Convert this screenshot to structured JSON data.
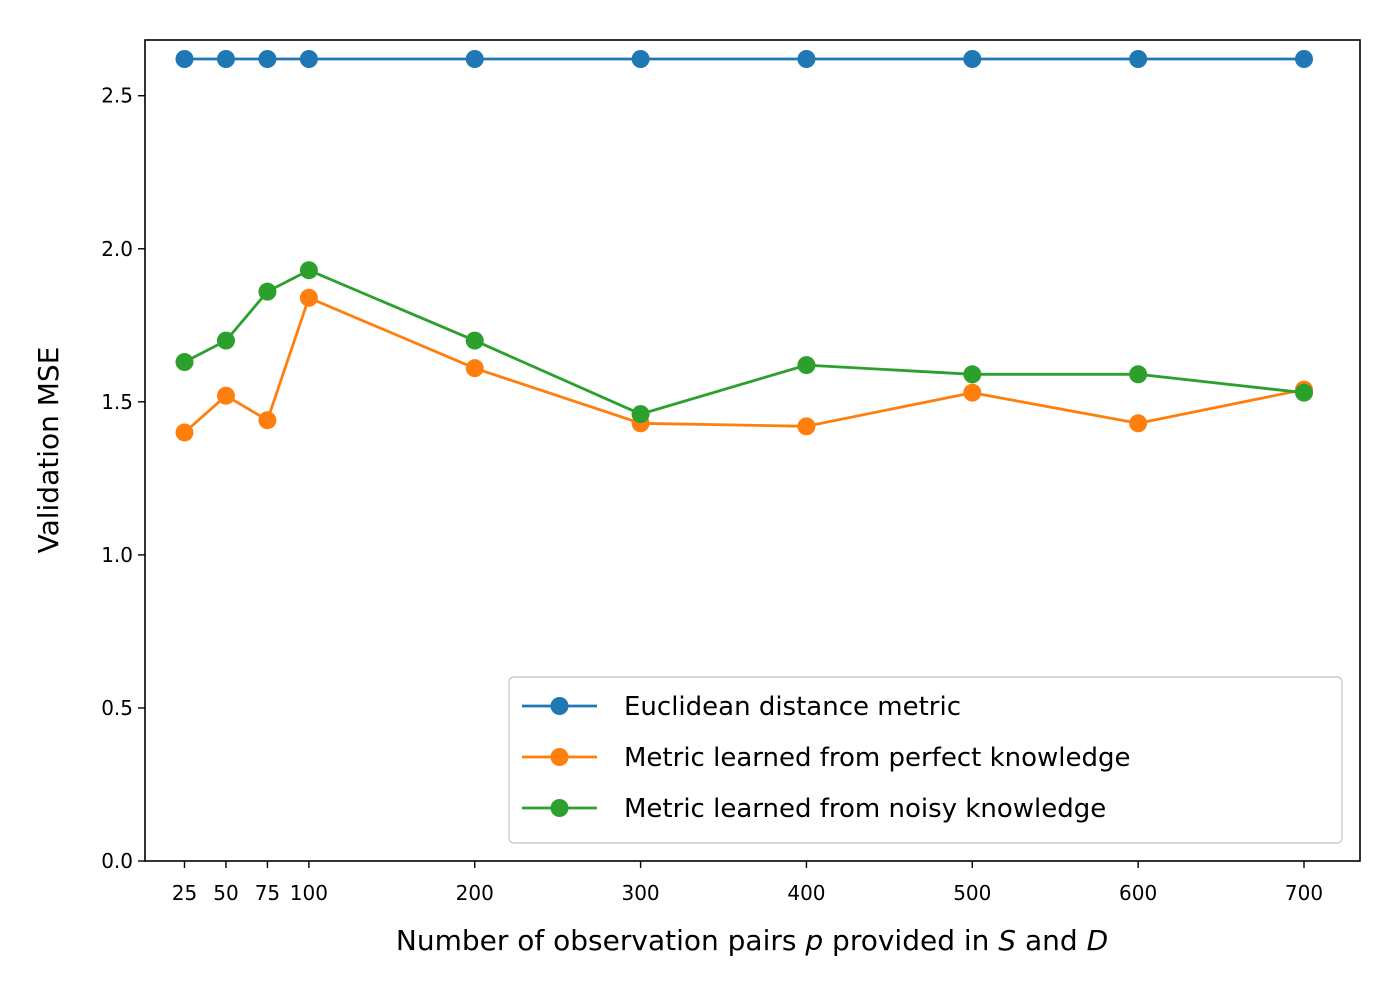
{
  "chart_data": {
    "type": "line",
    "xlabel": "Number of observation pairs p provided in S and D",
    "xlabel_parts": [
      {
        "text": "Number of observation pairs ",
        "italic": false
      },
      {
        "text": "p",
        "italic": true
      },
      {
        "text": " provided in ",
        "italic": false
      },
      {
        "text": "S",
        "italic": true
      },
      {
        "text": " and ",
        "italic": false
      },
      {
        "text": "D",
        "italic": true
      }
    ],
    "ylabel": "Validation MSE",
    "x": [
      25,
      50,
      75,
      100,
      200,
      300,
      400,
      500,
      600,
      700
    ],
    "x_tick_labels": [
      "25",
      "50",
      "75",
      "100",
      "200",
      "300",
      "400",
      "500",
      "600",
      "700"
    ],
    "xlim": [
      0,
      725
    ],
    "ylim": [
      0.0,
      2.69
    ],
    "y_ticks": [
      0.0,
      0.5,
      1.0,
      1.5,
      2.0,
      2.5
    ],
    "y_tick_labels": [
      "0.0",
      "0.5",
      "1.0",
      "1.5",
      "2.0",
      "2.5"
    ],
    "grid": false,
    "legend_position": "lower-right",
    "series": [
      {
        "name": "Euclidean distance metric",
        "color": "#1f77b4",
        "marker": "circle",
        "values": [
          2.62,
          2.62,
          2.62,
          2.62,
          2.62,
          2.62,
          2.62,
          2.62,
          2.62,
          2.62
        ]
      },
      {
        "name": "Metric learned from perfect knowledge",
        "color": "#ff7f0e",
        "marker": "circle",
        "values": [
          1.4,
          1.52,
          1.44,
          1.84,
          1.61,
          1.43,
          1.42,
          1.53,
          1.43,
          1.54
        ]
      },
      {
        "name": "Metric learned from noisy knowledge",
        "color": "#2ca02c",
        "marker": "circle",
        "values": [
          1.63,
          1.7,
          1.86,
          1.93,
          1.7,
          1.46,
          1.62,
          1.59,
          1.59,
          1.53
        ]
      }
    ]
  }
}
